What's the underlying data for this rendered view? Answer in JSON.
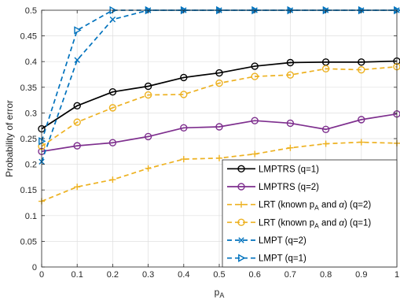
{
  "chart_data": {
    "type": "line",
    "title": "",
    "xlabel": {
      "base": "p",
      "sub": "A"
    },
    "ylabel": "Probability of error",
    "xlim": [
      0,
      1
    ],
    "ylim": [
      0,
      0.5
    ],
    "xticks": [
      0,
      0.1,
      0.2,
      0.3,
      0.4,
      0.5,
      0.6,
      0.7,
      0.8,
      0.9,
      1
    ],
    "xtick_labels": [
      "0",
      "0.1",
      "0.2",
      "0.3",
      "0.4",
      "0.5",
      "0.6",
      "0.7",
      "0.8",
      "0.9",
      "1"
    ],
    "yticks": [
      0,
      0.05,
      0.1,
      0.15,
      0.2,
      0.25,
      0.3,
      0.35,
      0.4,
      0.45,
      0.5
    ],
    "ytick_labels": [
      "0",
      "0.05",
      "0.1",
      "0.15",
      "0.2",
      "0.25",
      "0.3",
      "0.35",
      "0.4",
      "0.45",
      "0.5"
    ],
    "grid": true,
    "legend_position": "lower-right",
    "x": [
      0,
      0.1,
      0.2,
      0.3,
      0.4,
      0.5,
      0.6,
      0.7,
      0.8,
      0.9,
      1
    ],
    "series": [
      {
        "legend": [
          {
            "t": "LMPTRS (q=1)"
          }
        ],
        "color": "#000000",
        "dash": "solid",
        "marker": "circle",
        "values": [
          0.269,
          0.314,
          0.341,
          0.352,
          0.369,
          0.378,
          0.391,
          0.398,
          0.399,
          0.399,
          0.401
        ]
      },
      {
        "legend": [
          {
            "t": "LMPTRS (q=2)"
          }
        ],
        "color": "#7e2f8e",
        "dash": "solid",
        "marker": "circle",
        "values": [
          0.225,
          0.236,
          0.242,
          0.254,
          0.271,
          0.273,
          0.285,
          0.28,
          0.268,
          0.287,
          0.298
        ]
      },
      {
        "legend": [
          {
            "t": "LRT (known p"
          },
          {
            "t": "A",
            "sub": true
          },
          {
            "t": " and "
          },
          {
            "t": "α",
            "italic": true
          },
          {
            "t": ") (q=2)"
          }
        ],
        "color": "#edb120",
        "dash": "dashed",
        "marker": "plus",
        "values": [
          0.128,
          0.156,
          0.17,
          0.192,
          0.21,
          0.212,
          0.22,
          0.232,
          0.24,
          0.243,
          0.241
        ]
      },
      {
        "legend": [
          {
            "t": "LRT (known p"
          },
          {
            "t": "A",
            "sub": true
          },
          {
            "t": " and "
          },
          {
            "t": "α",
            "italic": true
          },
          {
            "t": ") (q=1)"
          }
        ],
        "color": "#edb120",
        "dash": "dashed",
        "marker": "circle",
        "values": [
          0.235,
          0.282,
          0.31,
          0.335,
          0.336,
          0.358,
          0.371,
          0.374,
          0.386,
          0.384,
          0.39
        ]
      },
      {
        "legend": [
          {
            "t": "LMPT (q=2)"
          }
        ],
        "color": "#0072bd",
        "dash": "dashed",
        "marker": "x",
        "values": [
          0.205,
          0.403,
          0.482,
          0.5,
          0.5,
          0.5,
          0.5,
          0.5,
          0.5,
          0.5,
          0.5
        ]
      },
      {
        "legend": [
          {
            "t": "LMPT (q=1)"
          }
        ],
        "color": "#0072bd",
        "dash": "dashed",
        "marker": "triangle-right",
        "values": [
          0.245,
          0.461,
          0.5,
          0.5,
          0.5,
          0.5,
          0.5,
          0.5,
          0.5,
          0.5,
          0.5
        ]
      }
    ]
  }
}
